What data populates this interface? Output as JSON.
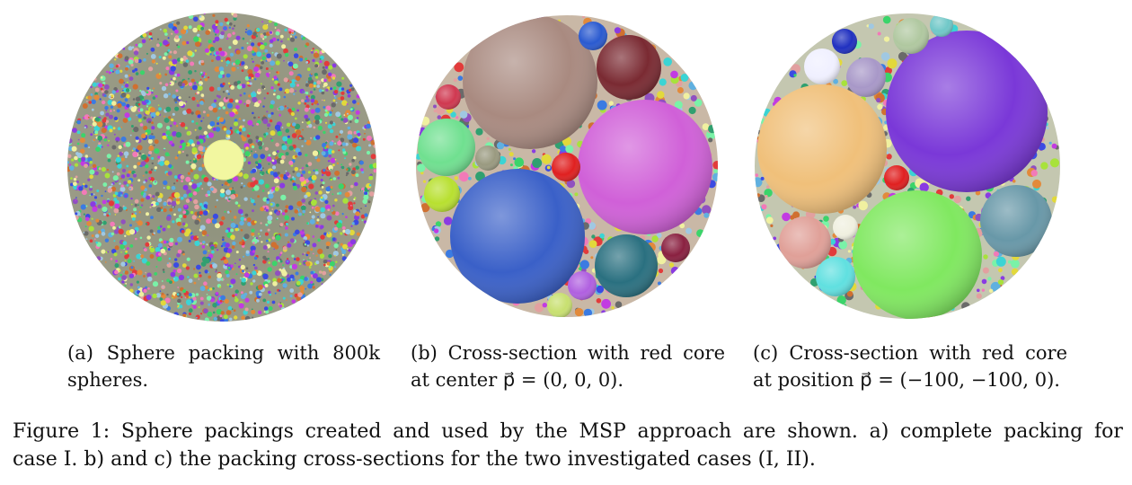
{
  "figure": {
    "caption_lines": [
      [
        "Figure",
        "1:",
        "Sphere",
        "packings",
        "created",
        "and",
        "used",
        "by",
        "the",
        "MSP",
        "approach",
        "are",
        "shown.",
        "a)",
        "complete",
        "packing",
        "for"
      ],
      "case I. b) and c) the packing cross-sections for the two investigated cases (I, II)."
    ]
  },
  "subfigures": [
    {
      "id": "a",
      "caption_first_words": [
        "(a)",
        "Sphere",
        "packing",
        "with",
        "800k"
      ],
      "caption_second": "spheres."
    },
    {
      "id": "b",
      "caption_first_words": [
        "(b)",
        "Cross-section",
        "with",
        "red",
        "core"
      ],
      "caption_second": "at center p⃗ = (0, 0, 0)."
    },
    {
      "id": "c",
      "caption_first_words": [
        "(c)",
        "Cross-section",
        "with",
        "red",
        "core"
      ],
      "caption_second": "at position p⃗ = (−100, −100, 0)."
    }
  ],
  "colors": {
    "core_red": "#e02020",
    "center_yellow": "#f2f7a0"
  }
}
